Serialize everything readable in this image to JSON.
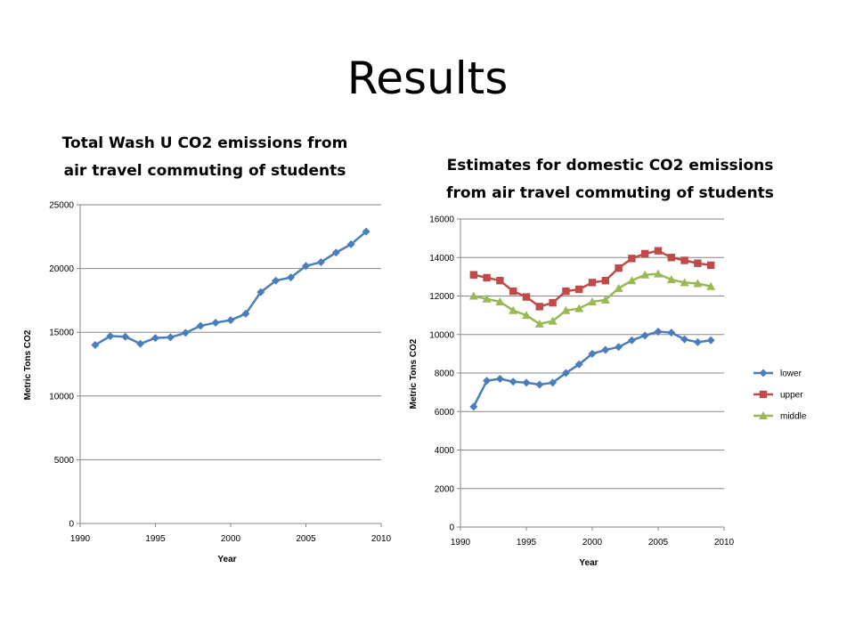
{
  "slide": {
    "title": "Results"
  },
  "colors": {
    "lower": "#4a7ebb",
    "upper": "#be4b48",
    "middle": "#98b954",
    "grid": "#868686",
    "axis": "#868686"
  },
  "chart_data": [
    {
      "type": "line",
      "title": "Total Wash U CO2 emissions from air travel commuting of students",
      "title_lines": [
        "Total Wash U CO2 emissions from",
        "air travel commuting of students"
      ],
      "xlabel": "Year",
      "ylabel": "Metric Tons CO2",
      "xlim": [
        1990,
        2010
      ],
      "ylim": [
        0,
        25000
      ],
      "x_ticks": [
        1990,
        1995,
        2000,
        2005,
        2010
      ],
      "y_ticks": [
        0,
        5000,
        10000,
        15000,
        20000,
        25000
      ],
      "grid": "horizontal",
      "series": [
        {
          "x": [
            1991,
            1992,
            1993,
            1994,
            1995,
            1996,
            1997,
            1998,
            1999,
            2000,
            2001,
            2002,
            2003,
            2004,
            2005,
            2006,
            2007,
            2008,
            2009
          ],
          "values": [
            14000,
            14700,
            14650,
            14100,
            14550,
            14600,
            14950,
            15500,
            15750,
            15950,
            16450,
            18150,
            19050,
            19300,
            20200,
            20500,
            21250,
            21900,
            22900
          ],
          "marker": "diamond",
          "color": "#4a7ebb"
        }
      ]
    },
    {
      "type": "line",
      "title": "Estimates for domestic CO2 emissions from air travel commuting of students",
      "title_lines": [
        "Estimates for domestic CO2 emissions",
        "from air travel commuting of students"
      ],
      "xlabel": "Year",
      "ylabel": "Metric Tons CO2",
      "xlim": [
        1990,
        2010
      ],
      "ylim": [
        0,
        16000
      ],
      "x_ticks": [
        1990,
        1995,
        2000,
        2005,
        2010
      ],
      "y_ticks": [
        0,
        2000,
        4000,
        6000,
        8000,
        10000,
        12000,
        14000,
        16000
      ],
      "grid": "horizontal",
      "legend": "right",
      "series": [
        {
          "name": "lower",
          "x": [
            1991,
            1992,
            1993,
            1994,
            1995,
            1996,
            1997,
            1998,
            1999,
            2000,
            2001,
            2002,
            2003,
            2004,
            2005,
            2006,
            2007,
            2008,
            2009
          ],
          "values": [
            6250,
            7600,
            7700,
            7550,
            7500,
            7400,
            7500,
            8000,
            8450,
            9000,
            9200,
            9350,
            9700,
            9950,
            10150,
            10100,
            9750,
            9600,
            9700
          ],
          "marker": "diamond",
          "color": "#4a7ebb"
        },
        {
          "name": "upper",
          "x": [
            1991,
            1992,
            1993,
            1994,
            1995,
            1996,
            1997,
            1998,
            1999,
            2000,
            2001,
            2002,
            2003,
            2004,
            2005,
            2006,
            2007,
            2008,
            2009
          ],
          "values": [
            13100,
            12950,
            12800,
            12250,
            11950,
            11450,
            11650,
            12250,
            12350,
            12700,
            12800,
            13450,
            13950,
            14200,
            14350,
            14000,
            13850,
            13700,
            13600
          ],
          "marker": "square",
          "color": "#be4b48"
        },
        {
          "name": "middle",
          "x": [
            1991,
            1992,
            1993,
            1994,
            1995,
            1996,
            1997,
            1998,
            1999,
            2000,
            2001,
            2002,
            2003,
            2004,
            2005,
            2006,
            2007,
            2008,
            2009
          ],
          "values": [
            12000,
            11850,
            11700,
            11250,
            11000,
            10550,
            10700,
            11250,
            11350,
            11700,
            11800,
            12400,
            12800,
            13100,
            13150,
            12850,
            12700,
            12650,
            12500
          ],
          "marker": "triangle",
          "color": "#98b954"
        }
      ]
    }
  ]
}
